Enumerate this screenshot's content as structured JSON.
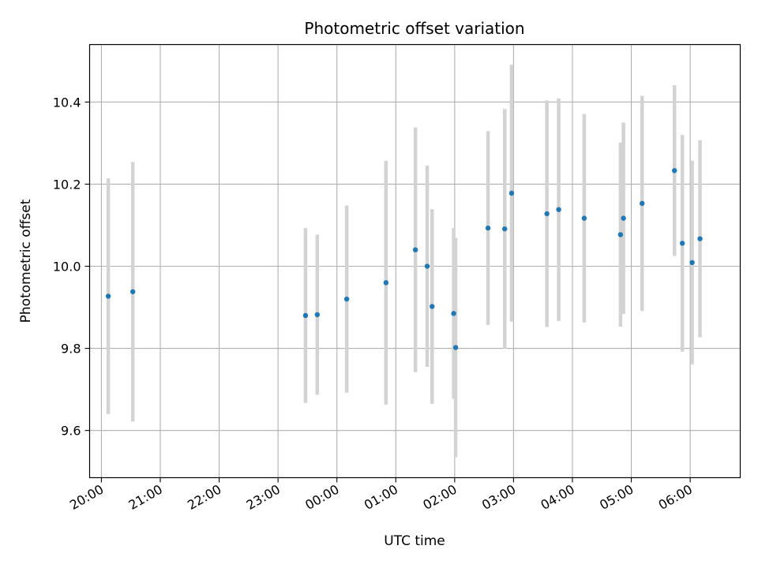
{
  "chart_data": {
    "type": "scatter",
    "title": "Photometric offset variation",
    "xlabel": "UTC time",
    "ylabel": "Photometric offset",
    "x_type": "time",
    "x_start_label": "20:00",
    "xlim": [
      "19:48",
      "06:51"
    ],
    "ylim": [
      9.485,
      10.54
    ],
    "grid": true,
    "marker_color": "#1f77b4",
    "errorbar_color": "#d3d3d3",
    "x_ticks": [
      "20:00",
      "21:00",
      "22:00",
      "23:00",
      "00:00",
      "01:00",
      "02:00",
      "03:00",
      "04:00",
      "05:00",
      "06:00"
    ],
    "y_ticks": [
      9.6,
      9.8,
      10.0,
      10.2,
      10.4
    ],
    "y_tick_labels": [
      "9.6",
      "9.8",
      "10.0",
      "10.2",
      "10.4"
    ],
    "series": [
      {
        "points": [
          {
            "x": "20:07",
            "y": 9.927,
            "err": 0.287
          },
          {
            "x": "20:32",
            "y": 9.938,
            "err": 0.316
          },
          {
            "x": "23:28",
            "y": 9.88,
            "err": 0.213
          },
          {
            "x": "23:40",
            "y": 9.882,
            "err": 0.195
          },
          {
            "x": "00:10",
            "y": 9.92,
            "err": 0.228
          },
          {
            "x": "00:50",
            "y": 9.96,
            "err": 0.297
          },
          {
            "x": "01:20",
            "y": 10.04,
            "err": 0.298
          },
          {
            "x": "01:32",
            "y": 10.0,
            "err": 0.245
          },
          {
            "x": "01:37",
            "y": 9.902,
            "err": 0.237
          },
          {
            "x": "01:59",
            "y": 9.885,
            "err": 0.208
          },
          {
            "x": "02:01",
            "y": 9.802,
            "err": 0.267
          },
          {
            "x": "02:34",
            "y": 10.093,
            "err": 0.236
          },
          {
            "x": "02:51",
            "y": 10.091,
            "err": 0.292
          },
          {
            "x": "02:58",
            "y": 10.178,
            "err": 0.313
          },
          {
            "x": "03:34",
            "y": 10.128,
            "err": 0.276
          },
          {
            "x": "03:46",
            "y": 10.138,
            "err": 0.271
          },
          {
            "x": "04:12",
            "y": 10.117,
            "err": 0.254
          },
          {
            "x": "04:49",
            "y": 10.077,
            "err": 0.224
          },
          {
            "x": "04:52",
            "y": 10.117,
            "err": 0.233
          },
          {
            "x": "05:11",
            "y": 10.153,
            "err": 0.262
          },
          {
            "x": "05:44",
            "y": 10.233,
            "err": 0.208
          },
          {
            "x": "05:52",
            "y": 10.056,
            "err": 0.264
          },
          {
            "x": "06:02",
            "y": 10.009,
            "err": 0.248
          },
          {
            "x": "06:10",
            "y": 10.067,
            "err": 0.24
          }
        ]
      }
    ]
  }
}
